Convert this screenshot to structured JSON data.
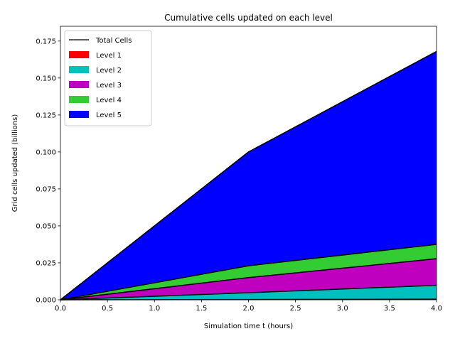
{
  "chart_data": {
    "type": "area",
    "title": "Cumulative cells updated on each level",
    "xlabel": "Simulation time t (hours)",
    "ylabel": "Grid cells updated (billions)",
    "x": [
      0.0,
      2.0,
      4.0
    ],
    "xlim": [
      0.0,
      4.0
    ],
    "ylim": [
      0.0,
      0.185
    ],
    "xticks": [
      "0.0",
      "0.5",
      "1.0",
      "1.5",
      "2.0",
      "2.5",
      "3.0",
      "3.5",
      "4.0"
    ],
    "yticks": [
      "0.000",
      "0.025",
      "0.050",
      "0.075",
      "0.100",
      "0.125",
      "0.150",
      "0.175"
    ],
    "legend_position": "upper-left",
    "total": {
      "name": "Total Cells",
      "color": "#000000",
      "values": [
        0.0,
        0.1,
        0.168
      ]
    },
    "series": [
      {
        "name": "Level 1",
        "color": "#ff0000",
        "values": [
          0.0,
          0.0002,
          0.0004
        ]
      },
      {
        "name": "Level 2",
        "color": "#00bfbf",
        "values": [
          0.0,
          0.0046,
          0.0094
        ]
      },
      {
        "name": "Level 3",
        "color": "#bf00bf",
        "values": [
          0.0,
          0.0102,
          0.018
        ]
      },
      {
        "name": "Level 4",
        "color": "#33cc33",
        "values": [
          0.0,
          0.008,
          0.0097
        ]
      },
      {
        "name": "Level 5",
        "color": "#0000ff",
        "values": [
          0.0,
          0.077,
          0.1305
        ]
      }
    ]
  }
}
